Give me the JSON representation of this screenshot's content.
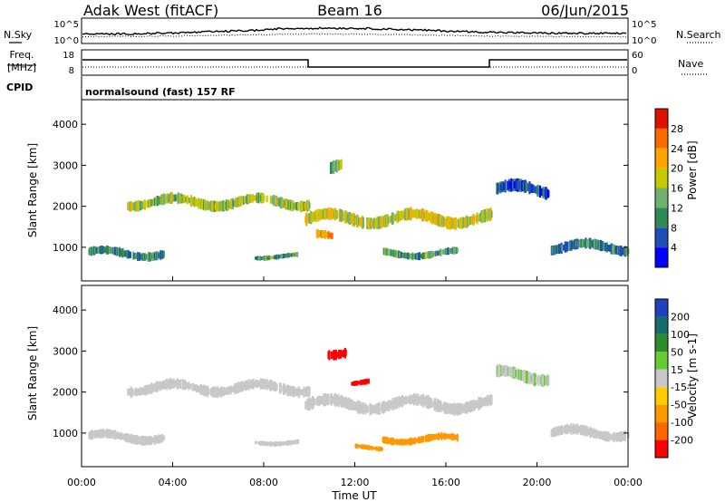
{
  "header": {
    "station": "Adak West (fitACF)",
    "beam": "Beam 16",
    "date": "06/Jun/2015"
  },
  "status_panels": {
    "nsky_label": "N.Sky",
    "nsearch_label": "N.Search",
    "freq_label_1": "Freq.",
    "freq_label_2": "[MHz]",
    "nave_label": "Nave",
    "cpid_label": "CPID",
    "cpid_text": "normalsound (fast) 157 RF",
    "noise_ticks_left": [
      "10^5",
      "10^0"
    ],
    "noise_ticks_right": [
      "10^5",
      "10^0"
    ],
    "freq_ticks": [
      "18",
      "8"
    ],
    "nave_ticks": [
      "60",
      "0"
    ]
  },
  "colors": {
    "power": [
      "#0000ff",
      "#1f4fb4",
      "#2e8b57",
      "#6fb06f",
      "#c8c800",
      "#ffa500",
      "#ff6a00",
      "#e01000"
    ],
    "velocity": [
      "#2040c0",
      "#1a6b6b",
      "#2e8b2e",
      "#66cc33",
      "#c8c8c8",
      "#ffcc00",
      "#ff9900",
      "#ff6600",
      "#ff0000"
    ]
  },
  "chart_data": [
    {
      "type": "heatmap",
      "title": "",
      "xlabel": "",
      "ylabel": "Slant Range [km]",
      "xlim": [
        "00:00",
        "24:00"
      ],
      "ylim": [
        180,
        4600
      ],
      "yticks": [
        "1000",
        "2000",
        "3000",
        "4000"
      ],
      "colorbar_label": "Power [dB]",
      "colorbar_ticks": [
        "4",
        "8",
        "12",
        "16",
        "20",
        "24",
        "28"
      ],
      "colorbar_range": [
        0,
        32
      ],
      "regions": [
        {
          "t_start": 0.3,
          "t_end": 3.6,
          "r_center": 850,
          "r_width": 220,
          "value": 10
        },
        {
          "t_start": 2.0,
          "t_end": 10.0,
          "r_center": 2100,
          "r_width": 260,
          "value": 16
        },
        {
          "t_start": 9.8,
          "t_end": 18.0,
          "r_center": 1700,
          "r_width": 300,
          "value": 18
        },
        {
          "t_start": 10.3,
          "t_end": 11.0,
          "r_center": 1250,
          "r_width": 200,
          "value": 22
        },
        {
          "t_start": 7.6,
          "t_end": 9.5,
          "r_center": 780,
          "r_width": 120,
          "value": 12
        },
        {
          "t_start": 13.2,
          "t_end": 16.5,
          "r_center": 850,
          "r_width": 180,
          "value": 12
        },
        {
          "t_start": 10.9,
          "t_end": 11.4,
          "r_center": 3000,
          "r_width": 300,
          "value": 14
        },
        {
          "t_start": 18.2,
          "t_end": 20.5,
          "r_center": 2400,
          "r_width": 300,
          "value": 6
        },
        {
          "t_start": 20.6,
          "t_end": 24.0,
          "r_center": 1000,
          "r_width": 250,
          "value": 9
        }
      ]
    },
    {
      "type": "heatmap",
      "title": "",
      "xlabel": "Time UT",
      "ylabel": "Slant Range [km]",
      "xlim": [
        "00:00",
        "24:00"
      ],
      "ylim": [
        180,
        4600
      ],
      "xticks": [
        "00:00",
        "04:00",
        "08:00",
        "12:00",
        "16:00",
        "20:00",
        "00:00"
      ],
      "yticks": [
        "1000",
        "2000",
        "3000",
        "4000"
      ],
      "colorbar_label": "Velocity [m s-1]",
      "colorbar_ticks": [
        "200",
        "100",
        "50",
        "15",
        "-15",
        "-50",
        "-100",
        "-200"
      ],
      "colorbar_range": [
        -250,
        250
      ],
      "regions": [
        {
          "t_start": 0.3,
          "t_end": 3.6,
          "r_center": 900,
          "r_width": 220,
          "value": 0
        },
        {
          "t_start": 2.0,
          "t_end": 10.0,
          "r_center": 2100,
          "r_width": 260,
          "value": 0
        },
        {
          "t_start": 9.8,
          "t_end": 18.0,
          "r_center": 1700,
          "r_width": 300,
          "value": 0
        },
        {
          "t_start": 7.6,
          "t_end": 9.5,
          "r_center": 780,
          "r_width": 120,
          "value": 0
        },
        {
          "t_start": 11.8,
          "t_end": 12.6,
          "r_center": 2250,
          "r_width": 140,
          "value": -220
        },
        {
          "t_start": 10.8,
          "t_end": 11.6,
          "r_center": 3000,
          "r_width": 250,
          "value": -160
        },
        {
          "t_start": 13.2,
          "t_end": 16.5,
          "r_center": 850,
          "r_width": 180,
          "value": -60
        },
        {
          "t_start": 12.0,
          "t_end": 13.2,
          "r_center": 650,
          "r_width": 120,
          "value": -40
        },
        {
          "t_start": 18.2,
          "t_end": 20.5,
          "r_center": 2400,
          "r_width": 300,
          "value": 10
        },
        {
          "t_start": 20.6,
          "t_end": 24.0,
          "r_center": 1000,
          "r_width": 250,
          "value": 0
        }
      ]
    }
  ]
}
